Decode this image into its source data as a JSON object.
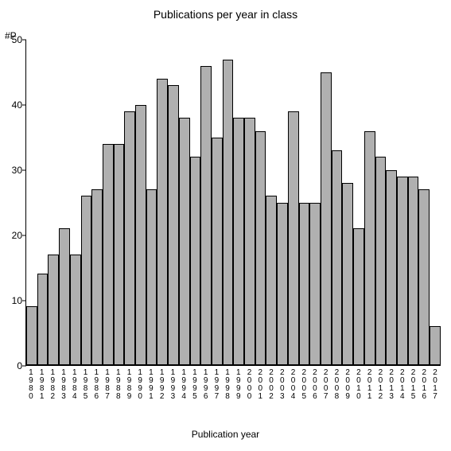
{
  "chart": {
    "type": "bar",
    "title": "Publications per year in class",
    "y_unit_label": "#P",
    "x_axis_title": "Publication year",
    "title_fontsize": 14,
    "label_fontsize": 12,
    "tick_fontsize": 12,
    "xtick_fontsize": 10,
    "background_color": "#ffffff",
    "bar_fill_color": "#b0b0b0",
    "bar_border_color": "#000000",
    "axis_color": "#000000",
    "text_color": "#000000",
    "ylim": [
      0,
      50
    ],
    "ytick_step": 10,
    "yticks": [
      0,
      10,
      20,
      30,
      40,
      50
    ],
    "categories": [
      "1980",
      "1981",
      "1982",
      "1983",
      "1984",
      "1985",
      "1986",
      "1987",
      "1988",
      "1989",
      "1990",
      "1991",
      "1992",
      "1993",
      "1994",
      "1995",
      "1996",
      "1997",
      "1998",
      "1999",
      "2000",
      "2001",
      "2002",
      "2003",
      "2004",
      "2005",
      "2006",
      "2007",
      "2008",
      "2009",
      "2010",
      "2011",
      "2012",
      "2013",
      "2014",
      "2015",
      "2016",
      "2017"
    ],
    "values": [
      9,
      14,
      17,
      21,
      17,
      26,
      27,
      34,
      34,
      39,
      40,
      27,
      44,
      43,
      38,
      32,
      46,
      35,
      47,
      38,
      38,
      36,
      26,
      25,
      39,
      25,
      25,
      45,
      33,
      28,
      21,
      36,
      32,
      30,
      29,
      29,
      27,
      6
    ]
  }
}
